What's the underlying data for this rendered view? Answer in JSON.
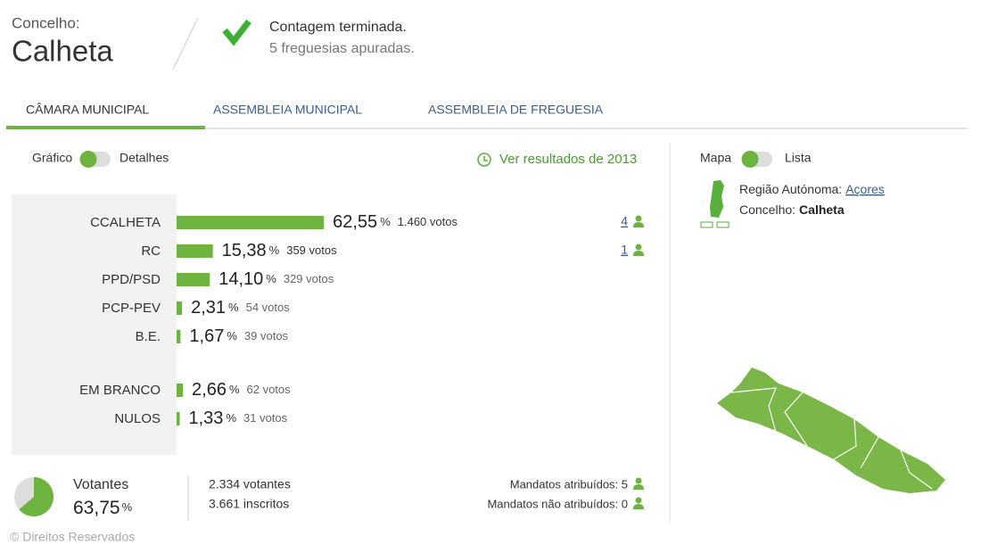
{
  "header": {
    "label": "Concelho:",
    "name": "Calheta",
    "status": "Contagem terminada.",
    "detail": "5 freguesias apuradas."
  },
  "tabs": [
    "CÂMARA MUNICIPAL",
    "ASSEMBLEIA MUNICIPAL",
    "ASSEMBLEIA DE FREGUESIA"
  ],
  "active_tab": 0,
  "view_toggle": [
    "Gráfico",
    "Detalhes"
  ],
  "history_link": "Ver resultados de 2013",
  "percent_unit": "%",
  "results": [
    {
      "name": "CCALHETA",
      "value": 62.55,
      "value_label": "62,55",
      "votes": "1.460 votos",
      "mandates": "4"
    },
    {
      "name": "RC",
      "value": 15.38,
      "value_label": "15,38",
      "votes": "359 votos",
      "mandates": "1"
    },
    {
      "name": "PPD/PSD",
      "value": 14.1,
      "value_label": "14,10",
      "votes": "329 votos"
    },
    {
      "name": "PCP-PEV",
      "value": 2.31,
      "value_label": "2,31",
      "votes": "54 votos"
    },
    {
      "name": "B.E.",
      "value": 1.67,
      "value_label": "1,67",
      "votes": "39 votos"
    }
  ],
  "other_results": [
    {
      "name": "EM BRANCO",
      "value": 2.66,
      "value_label": "2,66",
      "votes": "62 votos"
    },
    {
      "name": "NULOS",
      "value": 1.33,
      "value_label": "1,33",
      "votes": "31 votos"
    }
  ],
  "turnout": {
    "label": "Votantes",
    "value": 63.75,
    "value_label": "63,75",
    "voters": "2.334 votantes",
    "registered": "3.661 inscritos"
  },
  "mandates": {
    "assigned": "Mandatos atribuídos: 5",
    "unassigned": "Mandatos não atribuídos: 0"
  },
  "map_panel": {
    "toggle": [
      "Mapa",
      "Lista"
    ],
    "region_label": "Região Autónoma:",
    "region": "Açores",
    "municipality_label": "Concelho:",
    "municipality": "Calheta"
  },
  "copyright": "© Direitos Reservados"
}
